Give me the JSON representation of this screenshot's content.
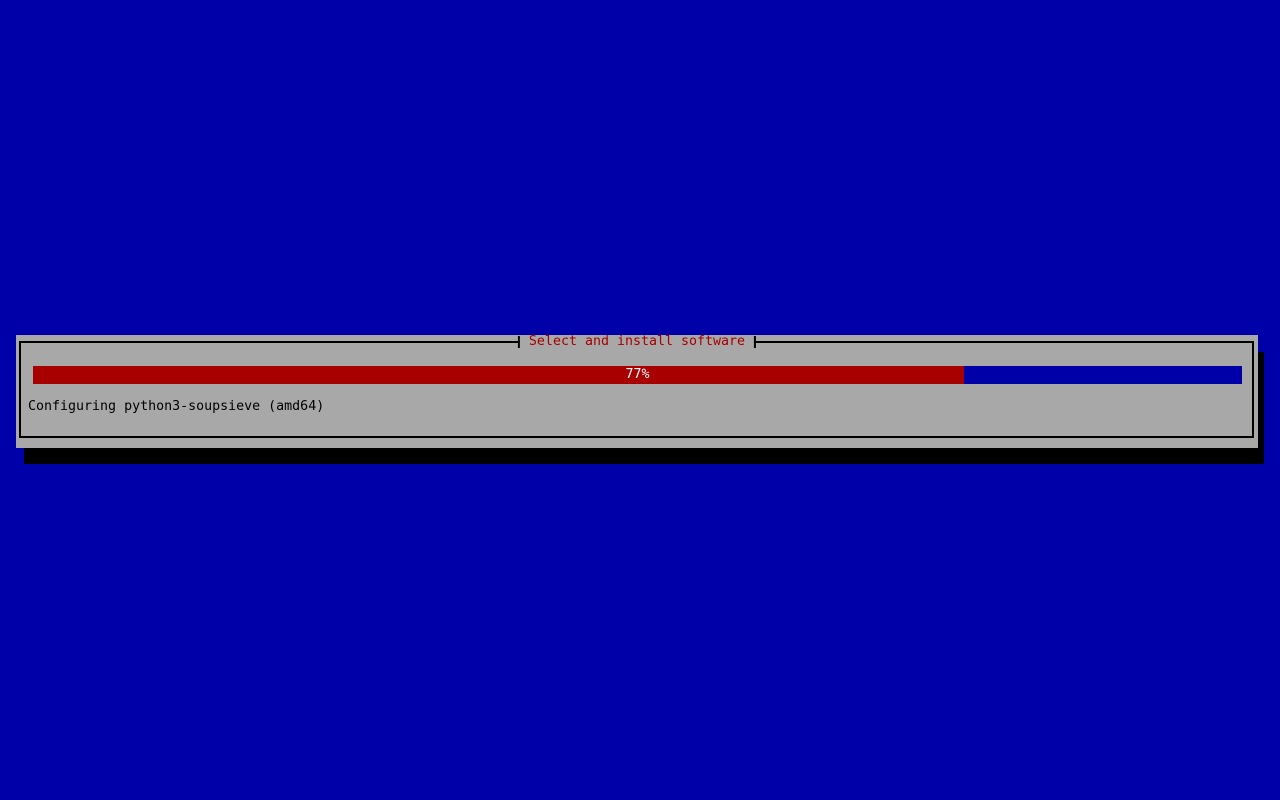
{
  "screen": {
    "description": "Debian installer text-mode progress screen"
  },
  "dialog": {
    "title": "Select and install software",
    "progress": {
      "percent": 77,
      "label": "77%"
    },
    "status_text": "Configuring python3-soupsieve (amd64)"
  },
  "colors": {
    "background": "#0000a8",
    "dialog_background": "#a8a8a8",
    "progress_fill": "#a80000",
    "progress_remainder": "#0000a8",
    "title_text": "#a80000",
    "status_text": "#000000",
    "percent_text": "#ffffff",
    "shadow": "#000000"
  }
}
